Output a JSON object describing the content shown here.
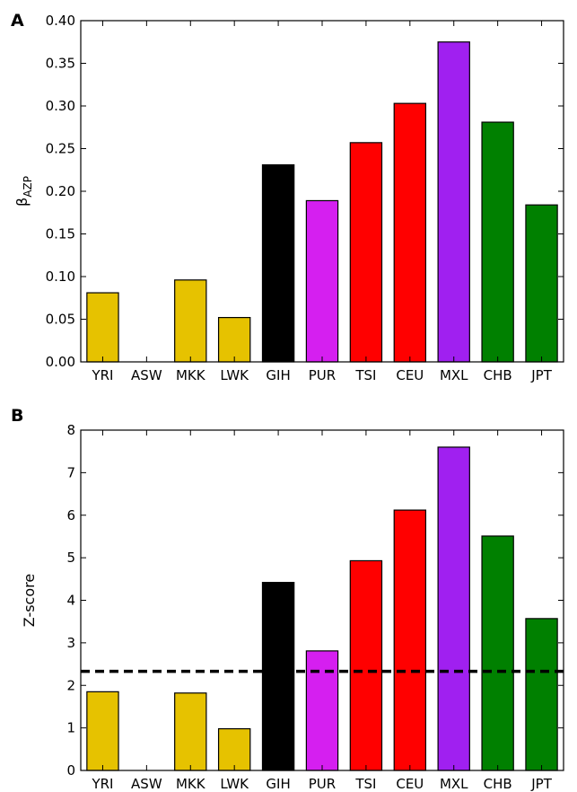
{
  "chart_data": [
    {
      "panel": "A",
      "type": "bar",
      "ylabel": "β",
      "ylabel_sub": "AZP",
      "categories": [
        "YRI",
        "ASW",
        "MKK",
        "LWK",
        "GIH",
        "PUR",
        "TSI",
        "CEU",
        "MXL",
        "CHB",
        "JPT"
      ],
      "values": [
        0.081,
        0.0,
        0.096,
        0.052,
        0.231,
        0.189,
        0.257,
        0.303,
        0.375,
        0.281,
        0.184
      ],
      "colors": [
        "#e6c200",
        "#e6c200",
        "#e6c200",
        "#e6c200",
        "#000000",
        "#d51ff0",
        "#ff0000",
        "#ff0000",
        "#a020f0",
        "#008000",
        "#008000"
      ],
      "ylim": [
        0,
        0.4
      ],
      "yticks": [
        "0.00",
        "0.05",
        "0.10",
        "0.15",
        "0.20",
        "0.25",
        "0.30",
        "0.35",
        "0.40"
      ],
      "grid": false
    },
    {
      "panel": "B",
      "type": "bar",
      "ylabel": "Z-score",
      "categories": [
        "YRI",
        "ASW",
        "MKK",
        "LWK",
        "GIH",
        "PUR",
        "TSI",
        "CEU",
        "MXL",
        "CHB",
        "JPT"
      ],
      "values": [
        1.85,
        0.0,
        1.82,
        0.98,
        4.42,
        2.81,
        4.93,
        6.12,
        7.6,
        5.51,
        3.57
      ],
      "colors": [
        "#e6c200",
        "#e6c200",
        "#e6c200",
        "#e6c200",
        "#000000",
        "#d51ff0",
        "#ff0000",
        "#ff0000",
        "#a020f0",
        "#008000",
        "#008000"
      ],
      "ylim": [
        0,
        8
      ],
      "yticks": [
        "0",
        "1",
        "2",
        "3",
        "4",
        "5",
        "6",
        "7",
        "8"
      ],
      "reference_line": 2.33,
      "grid": false
    }
  ]
}
